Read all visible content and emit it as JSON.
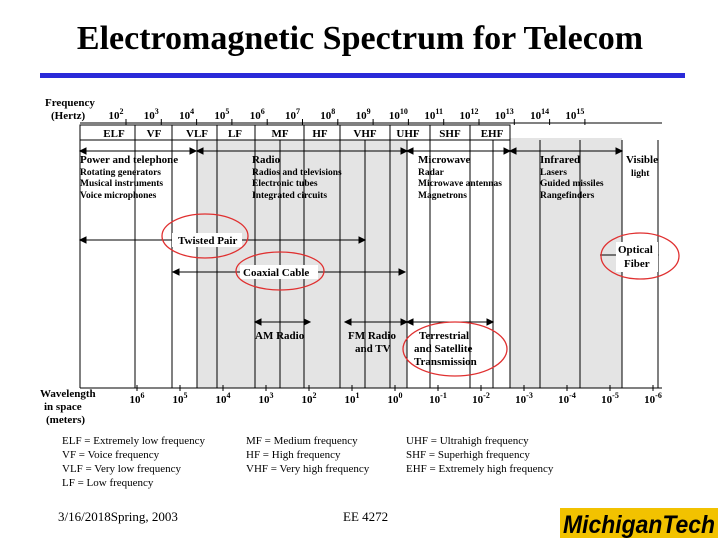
{
  "title": "Electromagnetic Spectrum for Telecom",
  "axis": {
    "freq_label_1": "Frequency",
    "freq_label_2": "(Hertz)",
    "wave_label_1": "Wavelength",
    "wave_label_2": "in space",
    "wave_label_3": "(meters)"
  },
  "freq_ticks": [
    {
      "b": "10",
      "e": "2"
    },
    {
      "b": "10",
      "e": "3"
    },
    {
      "b": "10",
      "e": "4"
    },
    {
      "b": "10",
      "e": "5"
    },
    {
      "b": "10",
      "e": "6"
    },
    {
      "b": "10",
      "e": "7"
    },
    {
      "b": "10",
      "e": "8"
    },
    {
      "b": "10",
      "e": "9"
    },
    {
      "b": "10",
      "e": "10"
    },
    {
      "b": "10",
      "e": "11"
    },
    {
      "b": "10",
      "e": "12"
    },
    {
      "b": "10",
      "e": "13"
    },
    {
      "b": "10",
      "e": "14"
    },
    {
      "b": "10",
      "e": "15"
    }
  ],
  "wave_ticks": [
    {
      "b": "10",
      "e": "6"
    },
    {
      "b": "10",
      "e": "5"
    },
    {
      "b": "10",
      "e": "4"
    },
    {
      "b": "10",
      "e": "3"
    },
    {
      "b": "10",
      "e": "2"
    },
    {
      "b": "10",
      "e": "1"
    },
    {
      "b": "10",
      "e": "0"
    },
    {
      "b": "10",
      "e": "-1"
    },
    {
      "b": "10",
      "e": "-2"
    },
    {
      "b": "10",
      "e": "-3"
    },
    {
      "b": "10",
      "e": "-4"
    },
    {
      "b": "10",
      "e": "-5"
    },
    {
      "b": "10",
      "e": "-6"
    }
  ],
  "bands": [
    "ELF",
    "VF",
    "VLF",
    "LF",
    "MF",
    "HF",
    "VHF",
    "UHF",
    "SHF",
    "EHF"
  ],
  "groups": {
    "power": {
      "head": "Power and telephone",
      "lines": [
        "Rotating generators",
        "Musical instruments",
        "Voice microphones"
      ]
    },
    "radio": {
      "head": "Radio",
      "lines": [
        "Radios and televisions",
        "Electronic tubes",
        "Integrated circuits"
      ]
    },
    "microwave": {
      "head": "Microwave",
      "lines": [
        "Radar",
        "Microwave antennas",
        "Magnetrons"
      ]
    },
    "infrared": {
      "head": "Infrared",
      "lines": [
        "Lasers",
        "Guided missiles",
        "Rangefinders"
      ]
    },
    "visible": {
      "head": "Visible",
      "lines": [
        "light"
      ]
    }
  },
  "media": {
    "twisted_pair": "Twisted Pair",
    "coaxial": "Coaxial Cable",
    "optical_1": "Optical",
    "optical_2": "Fiber",
    "am": "AM Radio",
    "fm_1": "FM Radio",
    "fm_2": "and TV",
    "terr_1": "Terrestrial",
    "terr_2": "and Satellite",
    "terr_3": "Transmission"
  },
  "legend": {
    "col1": [
      "ELF  = Extremely low frequency",
      "VF    = Voice frequency",
      "VLF  = Very low frequency",
      "LF    = Low frequency"
    ],
    "col2": [
      "MF    = Medium frequency",
      "HF    = High frequency",
      "VHF = Very high frequency"
    ],
    "col3": [
      "UHF = Ultrahigh frequency",
      "SHF = Superhigh frequency",
      "EHF = Extremely high frequency"
    ]
  },
  "footer": {
    "date": "3/16/2018Spring, 2003",
    "course": "EE 4272",
    "logo": "MichiganTech"
  },
  "colors": {
    "accent_rule": "#2a2ad8",
    "shade": "#e4e4e4",
    "circle": "#e03030",
    "logo_gold": "#f2c200"
  }
}
